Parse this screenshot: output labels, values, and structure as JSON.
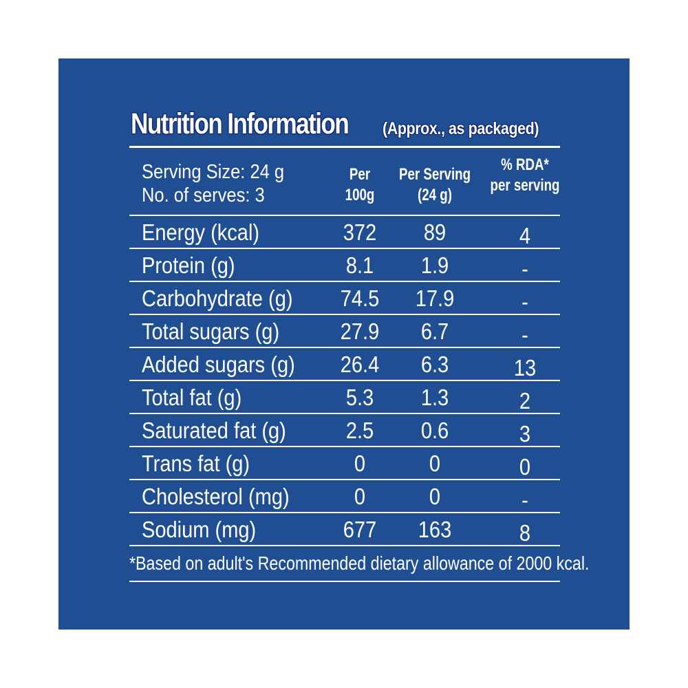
{
  "label": {
    "title": "Nutrition Information",
    "subtitle": "(Approx., as packaged)",
    "serving_size": "Serving Size: 24 g",
    "num_serves": "No. of serves: 3",
    "columns": [
      {
        "line1": "Per",
        "line2": "100g"
      },
      {
        "line1": "Per Serving",
        "line2": "(24 g)"
      },
      {
        "line1": "% RDA*",
        "line2": "per serving"
      }
    ],
    "rows": [
      {
        "nutrient": "Energy (kcal)",
        "per_100g": "372",
        "per_serving": "89",
        "rda": "4"
      },
      {
        "nutrient": "Protein (g)",
        "per_100g": "8.1",
        "per_serving": "1.9",
        "rda": "-"
      },
      {
        "nutrient": "Carbohydrate (g)",
        "per_100g": "74.5",
        "per_serving": "17.9",
        "rda": "-"
      },
      {
        "nutrient": "Total sugars (g)",
        "per_100g": "27.9",
        "per_serving": "6.7",
        "rda": "-"
      },
      {
        "nutrient": "Added sugars (g)",
        "per_100g": "26.4",
        "per_serving": "6.3",
        "rda": "13"
      },
      {
        "nutrient": "Total fat (g)",
        "per_100g": "5.3",
        "per_serving": "1.3",
        "rda": "2"
      },
      {
        "nutrient": "Saturated fat (g)",
        "per_100g": "2.5",
        "per_serving": "0.6",
        "rda": "3"
      },
      {
        "nutrient": "Trans fat (g)",
        "per_100g": "0",
        "per_serving": "0",
        "rda": "0"
      },
      {
        "nutrient": "Cholesterol (mg)",
        "per_100g": "0",
        "per_serving": "0",
        "rda": "-"
      },
      {
        "nutrient": "Sodium (mg)",
        "per_100g": "677",
        "per_serving": "163",
        "rda": "8"
      }
    ],
    "footnote": "*Based on adult's Recommended dietary allowance of 2000 kcal."
  },
  "colors": {
    "background": "#204e92",
    "text": "#ffffff",
    "title_outline": "#0a1e6e"
  }
}
